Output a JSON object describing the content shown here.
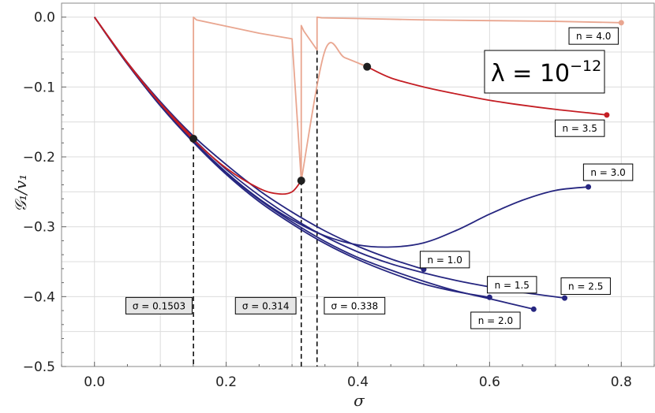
{
  "chart_data": {
    "type": "line",
    "title": "",
    "xlabel": "σ",
    "ylabel": "𝒢₁/v₁",
    "xlim": [
      -0.05,
      0.85
    ],
    "ylim": [
      -0.5,
      0.02
    ],
    "xticks": [
      0.0,
      0.2,
      0.4,
      0.6,
      0.8
    ],
    "xtick_labels": [
      "0.0",
      "0.2",
      "0.4",
      "0.6",
      "0.8"
    ],
    "yticks": [
      0.0,
      -0.1,
      -0.2,
      -0.3,
      -0.4,
      -0.5
    ],
    "ytick_labels": [
      "0.0",
      "−0.1",
      "−0.2",
      "−0.3",
      "−0.4",
      "−0.5"
    ],
    "grid": true,
    "lambda_label": {
      "base": "λ = 10",
      "exponent": "−12"
    },
    "colors": {
      "blue": "#262680",
      "red": "#c41e24",
      "salmon": "#e9a690",
      "dot": "#1f1f1f"
    },
    "series": [
      {
        "name": "n = 1.0",
        "color": "#262680",
        "x": [
          0,
          0.05,
          0.1,
          0.15,
          0.2,
          0.25,
          0.3,
          0.35,
          0.4,
          0.45,
          0.5
        ],
        "y": [
          0,
          -0.065,
          -0.121,
          -0.17,
          -0.211,
          -0.248,
          -0.279,
          -0.306,
          -0.328,
          -0.346,
          -0.361
        ]
      },
      {
        "name": "n = 1.5",
        "color": "#262680",
        "x": [
          0,
          0.05,
          0.1,
          0.15,
          0.2,
          0.25,
          0.3,
          0.35,
          0.4,
          0.45,
          0.5,
          0.55,
          0.6,
          0.65,
          0.714
        ],
        "y": [
          0,
          -0.066,
          -0.123,
          -0.174,
          -0.218,
          -0.255,
          -0.287,
          -0.314,
          -0.336,
          -0.353,
          -0.366,
          -0.377,
          -0.386,
          -0.394,
          -0.402
        ]
      },
      {
        "name": "n = 2.0",
        "color": "#262680",
        "x": [
          0,
          0.05,
          0.1,
          0.15,
          0.2,
          0.25,
          0.3,
          0.35,
          0.4,
          0.45,
          0.5,
          0.55,
          0.6,
          0.667
        ],
        "y": [
          0,
          -0.067,
          -0.126,
          -0.178,
          -0.223,
          -0.261,
          -0.293,
          -0.321,
          -0.344,
          -0.362,
          -0.378,
          -0.392,
          -0.403,
          -0.418
        ]
      },
      {
        "name": "n = 2.5",
        "color": "#262680",
        "x": [
          0,
          0.05,
          0.1,
          0.15,
          0.2,
          0.25,
          0.3,
          0.35,
          0.4,
          0.45,
          0.5,
          0.55,
          0.6
        ],
        "y": [
          0,
          -0.067,
          -0.127,
          -0.179,
          -0.225,
          -0.264,
          -0.296,
          -0.324,
          -0.347,
          -0.366,
          -0.382,
          -0.393,
          -0.401
        ]
      },
      {
        "name": "n = 3.0",
        "color": "#262680",
        "x": [
          0,
          0.05,
          0.1,
          0.15,
          0.2,
          0.25,
          0.3,
          0.35,
          0.4,
          0.45,
          0.5,
          0.55,
          0.6,
          0.65,
          0.7,
          0.75
        ],
        "y": [
          0,
          -0.067,
          -0.126,
          -0.177,
          -0.222,
          -0.26,
          -0.29,
          -0.313,
          -0.326,
          -0.329,
          -0.323,
          -0.305,
          -0.282,
          -0.262,
          -0.248,
          -0.243
        ]
      },
      {
        "name": "n = 3.5",
        "color": "#c41e24",
        "x": [
          0,
          0.05,
          0.1,
          0.15,
          0.2,
          0.25,
          0.28,
          0.3,
          0.314
        ],
        "y": [
          0,
          -0.066,
          -0.124,
          -0.175,
          -0.216,
          -0.245,
          -0.253,
          -0.25,
          -0.234
        ]
      },
      {
        "name": "n = 3.5",
        "color": "#c41e24",
        "x": [
          0.414,
          0.45,
          0.5,
          0.55,
          0.6,
          0.65,
          0.7,
          0.75,
          0.778
        ],
        "y": [
          -0.071,
          -0.087,
          -0.1,
          -0.11,
          -0.119,
          -0.126,
          -0.132,
          -0.137,
          -0.14
        ]
      },
      {
        "name": "n = 4.0",
        "color": "#c41e24",
        "x": [
          0,
          0.05,
          0.1,
          0.15,
          0.1503
        ],
        "y": [
          0,
          -0.065,
          -0.123,
          -0.173,
          -0.174
        ]
      },
      {
        "name": "n = 4.0",
        "color": "#e9a690",
        "x": [
          0.1503,
          0.1503,
          0.155,
          0.2,
          0.25,
          0.3,
          0.314,
          0.314,
          0.318,
          0.338,
          0.338,
          0.345,
          0.4,
          0.5,
          0.6,
          0.7,
          0.8
        ],
        "y": [
          -0.174,
          0.0,
          -0.004,
          -0.013,
          -0.023,
          -0.031,
          -0.234,
          -0.012,
          -0.02,
          -0.047,
          0.0,
          -0.001,
          -0.002,
          -0.004,
          -0.005,
          -0.006,
          -0.008
        ]
      },
      {
        "name": "n = 3.5",
        "color": "#e9a690",
        "x": [
          0.314,
          0.35,
          0.38,
          0.414
        ],
        "y": [
          -0.234,
          -0.048,
          -0.058,
          -0.071
        ]
      }
    ],
    "end_points": [
      {
        "x": 0.5,
        "y": -0.361,
        "color": "#262680"
      },
      {
        "x": 0.6,
        "y": -0.401,
        "color": "#262680"
      },
      {
        "x": 0.667,
        "y": -0.418,
        "color": "#262680"
      },
      {
        "x": 0.714,
        "y": -0.402,
        "color": "#262680"
      },
      {
        "x": 0.75,
        "y": -0.243,
        "color": "#262680"
      },
      {
        "x": 0.778,
        "y": -0.14,
        "color": "#c41e24"
      },
      {
        "x": 0.8,
        "y": -0.008,
        "color": "#e9a690"
      }
    ],
    "transition_points": [
      {
        "x": 0.1503,
        "y": -0.174
      },
      {
        "x": 0.314,
        "y": -0.234
      },
      {
        "x": 0.414,
        "y": -0.071
      }
    ],
    "vertical_lines": [
      {
        "x": 0.1503,
        "y_top": -0.174,
        "label": "σ = 0.1503",
        "label_x": 0.098,
        "label_y": -0.413,
        "shaded": true
      },
      {
        "x": 0.314,
        "y_top": -0.234,
        "label": "σ = 0.314",
        "label_x": 0.26,
        "label_y": -0.413,
        "shaded": true
      },
      {
        "x": 0.338,
        "y_top": -0.047,
        "label": "σ = 0.338",
        "label_x": 0.395,
        "label_y": -0.413,
        "shaded": false
      }
    ],
    "series_labels": [
      {
        "text": "n = 1.0",
        "x": 0.532,
        "y": -0.347
      },
      {
        "text": "n = 1.5",
        "x": 0.634,
        "y": -0.383
      },
      {
        "text": "n = 2.0",
        "x": 0.609,
        "y": -0.434
      },
      {
        "text": "n = 2.5",
        "x": 0.746,
        "y": -0.385
      },
      {
        "text": "n = 3.0",
        "x": 0.78,
        "y": -0.222
      },
      {
        "text": "n = 3.5",
        "x": 0.737,
        "y": -0.159
      },
      {
        "text": "n = 4.0",
        "x": 0.758,
        "y": -0.027
      }
    ]
  }
}
